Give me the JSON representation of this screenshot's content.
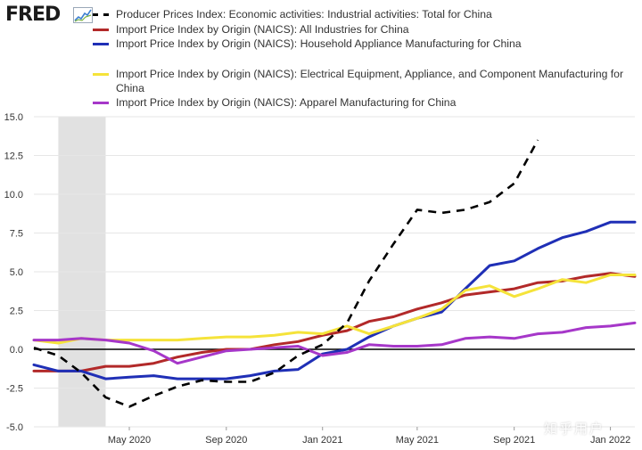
{
  "brand": {
    "name": "FRED",
    "icon": "chart-line-icon"
  },
  "watermark": "知乎用户",
  "chart_data": {
    "type": "line",
    "title": "",
    "xlabel": "",
    "ylabel": "",
    "ylim": [
      -5.0,
      15.0
    ],
    "yticks": [
      "15.0",
      "12.5",
      "10.0",
      "7.5",
      "5.0",
      "2.5",
      "0.0",
      "-2.5",
      "-5.0"
    ],
    "xlim": [
      "2020-01-01",
      "2022-02-01"
    ],
    "xticks": [
      {
        "date": "2020-05-01",
        "label": "May 2020"
      },
      {
        "date": "2020-09-01",
        "label": "Sep 2020"
      },
      {
        "date": "2021-01-01",
        "label": "Jan 2021"
      },
      {
        "date": "2021-05-01",
        "label": "May 2021"
      },
      {
        "date": "2021-09-01",
        "label": "Sep 2021"
      },
      {
        "date": "2022-01-01",
        "label": "Jan 2022"
      }
    ],
    "recession": {
      "start": "2020-02-01",
      "end": "2020-04-01",
      "color": "#e1e1e1"
    },
    "zero_line": true,
    "grid": "horizontal",
    "legend_position": "top",
    "series": [
      {
        "name": "Producer Prices Index: Economic activities: Industrial activities: Total for China",
        "color": "#000000",
        "dash": true,
        "x": [
          "2020-01-01",
          "2020-02-01",
          "2020-03-01",
          "2020-04-01",
          "2020-05-01",
          "2020-06-01",
          "2020-07-01",
          "2020-08-01",
          "2020-09-01",
          "2020-10-01",
          "2020-11-01",
          "2020-12-01",
          "2021-01-01",
          "2021-02-01",
          "2021-03-01",
          "2021-04-01",
          "2021-05-01",
          "2021-06-01",
          "2021-07-01",
          "2021-08-01",
          "2021-09-01",
          "2021-10-01"
        ],
        "y": [
          0.1,
          -0.4,
          -1.5,
          -3.1,
          -3.7,
          -3.0,
          -2.4,
          -2.0,
          -2.1,
          -2.1,
          -1.5,
          -0.4,
          0.3,
          1.7,
          4.4,
          6.8,
          9.0,
          8.8,
          9.0,
          9.5,
          10.7,
          13.5
        ]
      },
      {
        "name": "Import Price Index by Origin (NAICS): All Industries for China",
        "color": "#b22929",
        "dash": false,
        "x": [
          "2020-01-01",
          "2020-02-01",
          "2020-03-01",
          "2020-04-01",
          "2020-05-01",
          "2020-06-01",
          "2020-07-01",
          "2020-08-01",
          "2020-09-01",
          "2020-10-01",
          "2020-11-01",
          "2020-12-01",
          "2021-01-01",
          "2021-02-01",
          "2021-03-01",
          "2021-04-01",
          "2021-05-01",
          "2021-06-01",
          "2021-07-01",
          "2021-08-01",
          "2021-09-01",
          "2021-10-01",
          "2021-11-01",
          "2021-12-01",
          "2022-01-01",
          "2022-02-01"
        ],
        "y": [
          -1.4,
          -1.4,
          -1.4,
          -1.1,
          -1.1,
          -0.9,
          -0.5,
          -0.2,
          0.0,
          0.0,
          0.3,
          0.5,
          0.9,
          1.2,
          1.8,
          2.1,
          2.6,
          3.0,
          3.5,
          3.7,
          3.9,
          4.3,
          4.4,
          4.7,
          4.9,
          4.7
        ]
      },
      {
        "name": "Import Price Index by Origin (NAICS): Household Appliance Manufacturing for China",
        "color": "#1f2fb6",
        "dash": false,
        "x": [
          "2020-01-01",
          "2020-02-01",
          "2020-03-01",
          "2020-04-01",
          "2020-05-01",
          "2020-06-01",
          "2020-07-01",
          "2020-08-01",
          "2020-09-01",
          "2020-10-01",
          "2020-11-01",
          "2020-12-01",
          "2021-01-01",
          "2021-02-01",
          "2021-03-01",
          "2021-04-01",
          "2021-05-01",
          "2021-06-01",
          "2021-07-01",
          "2021-08-01",
          "2021-09-01",
          "2021-10-01",
          "2021-11-01",
          "2021-12-01",
          "2022-01-01",
          "2022-02-01"
        ],
        "y": [
          -1.0,
          -1.4,
          -1.4,
          -1.9,
          -1.8,
          -1.7,
          -1.9,
          -1.9,
          -1.9,
          -1.7,
          -1.4,
          -1.3,
          -0.3,
          0.0,
          0.8,
          1.5,
          2.0,
          2.4,
          3.9,
          5.4,
          5.7,
          6.5,
          7.2,
          7.6,
          8.2,
          8.2
        ]
      },
      {
        "name": "Import Price Index by Origin (NAICS): Electrical Equipment, Appliance, and Component Manufacturing for China",
        "color": "#f5e33a",
        "dash": false,
        "x": [
          "2020-01-01",
          "2020-02-01",
          "2020-03-01",
          "2020-04-01",
          "2020-05-01",
          "2020-06-01",
          "2020-07-01",
          "2020-08-01",
          "2020-09-01",
          "2020-10-01",
          "2020-11-01",
          "2020-12-01",
          "2021-01-01",
          "2021-02-01",
          "2021-03-01",
          "2021-04-01",
          "2021-05-01",
          "2021-06-01",
          "2021-07-01",
          "2021-08-01",
          "2021-09-01",
          "2021-10-01",
          "2021-11-01",
          "2021-12-01",
          "2022-01-01",
          "2022-02-01"
        ],
        "y": [
          0.6,
          0.4,
          0.7,
          0.6,
          0.6,
          0.6,
          0.6,
          0.7,
          0.8,
          0.8,
          0.9,
          1.1,
          1.0,
          1.5,
          1.0,
          1.5,
          2.0,
          2.6,
          3.8,
          4.1,
          3.4,
          3.9,
          4.5,
          4.3,
          4.8,
          4.8
        ]
      },
      {
        "name": "Import Price Index by Origin (NAICS): Apparel Manufacturing for China",
        "color": "#a637c9",
        "dash": false,
        "x": [
          "2020-01-01",
          "2020-02-01",
          "2020-03-01",
          "2020-04-01",
          "2020-05-01",
          "2020-06-01",
          "2020-07-01",
          "2020-08-01",
          "2020-09-01",
          "2020-10-01",
          "2020-11-01",
          "2020-12-01",
          "2021-01-01",
          "2021-02-01",
          "2021-03-01",
          "2021-04-01",
          "2021-05-01",
          "2021-06-01",
          "2021-07-01",
          "2021-08-01",
          "2021-09-01",
          "2021-10-01",
          "2021-11-01",
          "2021-12-01",
          "2022-01-01",
          "2022-02-01"
        ],
        "y": [
          0.6,
          0.6,
          0.7,
          0.6,
          0.4,
          -0.1,
          -0.9,
          -0.5,
          -0.1,
          0.0,
          0.1,
          0.2,
          -0.4,
          -0.2,
          0.3,
          0.2,
          0.2,
          0.3,
          0.7,
          0.8,
          0.7,
          1.0,
          1.1,
          1.4,
          1.5,
          1.7
        ]
      }
    ]
  }
}
